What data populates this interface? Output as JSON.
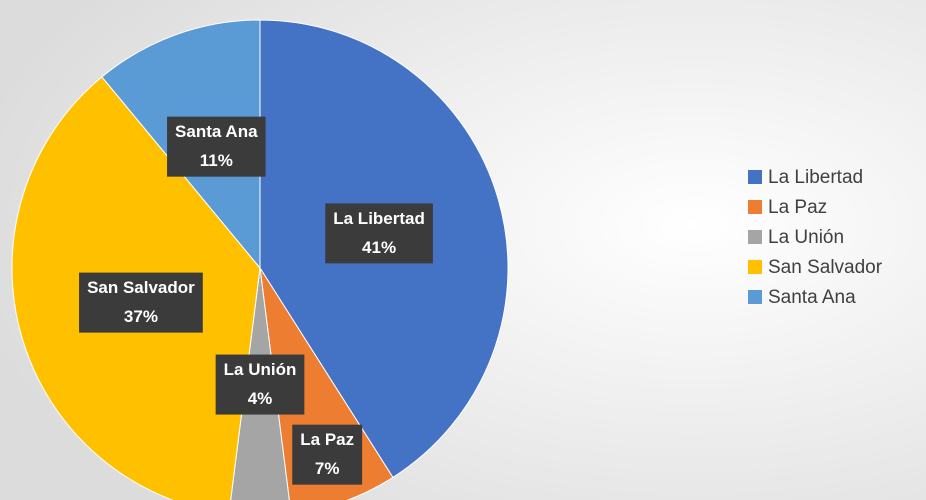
{
  "chart_data": {
    "type": "pie",
    "categories": [
      "La Libertad",
      "La Paz",
      "La Unión",
      "San Salvador",
      "Santa Ana"
    ],
    "values": [
      41,
      7,
      4,
      37,
      11
    ],
    "value_labels": [
      "41%",
      "7%",
      "4%",
      "37%",
      "11%"
    ],
    "colors": [
      "#4472c4",
      "#ed7d31",
      "#a5a5a5",
      "#ffc000",
      "#5b9bd5"
    ],
    "legend": "right"
  }
}
